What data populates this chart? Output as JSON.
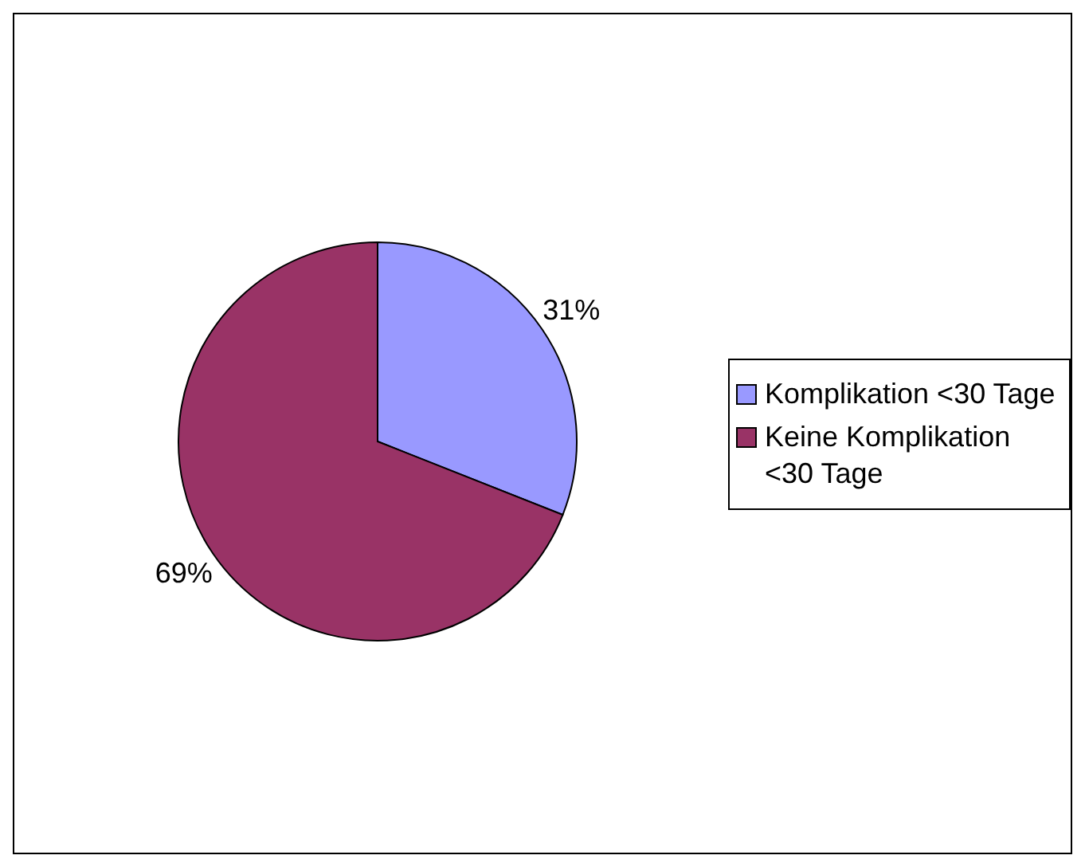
{
  "chart_data": {
    "type": "pie",
    "categories": [
      "Komplikation <30 Tage",
      "Keine Komplikation <30 Tage"
    ],
    "values": [
      31,
      69
    ],
    "colors": [
      "#9999ff",
      "#993366"
    ],
    "value_labels": [
      "31%",
      "69%"
    ],
    "legend": "right"
  }
}
